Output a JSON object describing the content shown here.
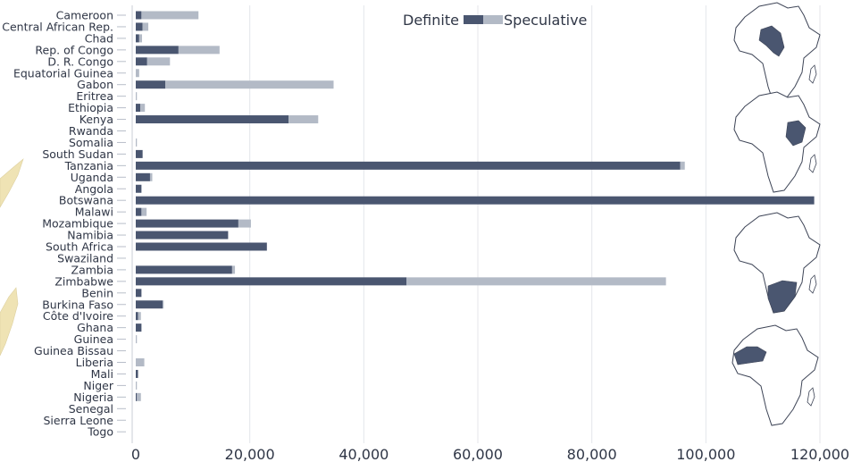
{
  "chart_data": {
    "type": "bar",
    "orientation": "horizontal",
    "stacked": true,
    "categories": [
      "Cameroon",
      "Central African Rep.",
      "Chad",
      "Rep. of Congo",
      "D. R. Congo",
      "Equatorial Guinea",
      "Gabon",
      "Eritrea",
      "Ethiopia",
      "Kenya",
      "Rwanda",
      "Somalia",
      "South Sudan",
      "Tanzania",
      "Uganda",
      "Angola",
      "Botswana",
      "Malawi",
      "Mozambique",
      "Namibia",
      "South Africa",
      "Swaziland",
      "Zambia",
      "Zimbabwe",
      "Benin",
      "Burkina Faso",
      "Côte d'Ivoire",
      "Ghana",
      "Guinea",
      "Guinea Bissau",
      "Liberia",
      "Mali",
      "Niger",
      "Nigeria",
      "Senegal",
      "Sierra Leone",
      "Togo"
    ],
    "series": [
      {
        "name": "Definite",
        "color": "#4a5670",
        "values": [
          1000,
          1200,
          600,
          7500,
          2000,
          0,
          5200,
          0,
          800,
          26800,
          0,
          0,
          1200,
          95500,
          2500,
          1000,
          119000,
          1000,
          18000,
          16200,
          23000,
          0,
          16900,
          47500,
          1000,
          4700,
          400,
          1000,
          0,
          0,
          0,
          400,
          0,
          200,
          0,
          0,
          0
        ]
      },
      {
        "name": "Speculative",
        "color": "#b3bac6",
        "values": [
          10000,
          1000,
          500,
          7200,
          4000,
          600,
          29500,
          200,
          800,
          5200,
          0,
          200,
          0,
          800,
          400,
          0,
          0,
          900,
          2200,
          0,
          0,
          0,
          500,
          45500,
          0,
          200,
          500,
          0,
          200,
          0,
          1500,
          0,
          200,
          700,
          0,
          0,
          0
        ]
      }
    ],
    "xlim": [
      0,
      120000
    ],
    "xticks": [
      0,
      20000,
      40000,
      60000,
      80000,
      100000,
      120000
    ],
    "xtick_labels": [
      "0",
      "20,000",
      "40,000",
      "60,000",
      "80,000",
      "100,000",
      "120,000"
    ],
    "grid": "vertical",
    "legend_position": "top",
    "title": "",
    "xlabel": "",
    "ylabel": ""
  },
  "inset_maps": [
    {
      "name": "central-africa-map-icon"
    },
    {
      "name": "east-africa-map-icon"
    },
    {
      "name": "southern-africa-map-icon"
    },
    {
      "name": "west-africa-map-icon"
    }
  ]
}
